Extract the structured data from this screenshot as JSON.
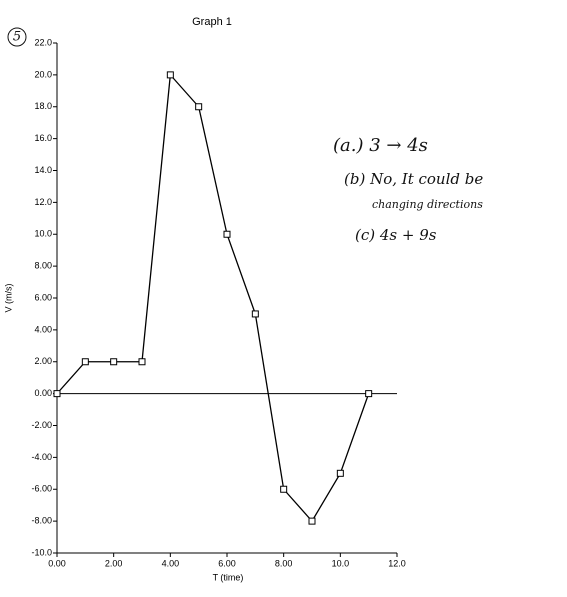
{
  "chart_data": {
    "type": "line",
    "title": "Graph 1",
    "xlabel": "T  (time)",
    "ylabel": "V  (m/s)",
    "x": [
      0,
      1,
      2,
      3,
      4,
      5,
      6,
      7,
      8,
      9,
      10,
      11
    ],
    "series": [
      {
        "color": "#000000",
        "values": [
          0,
          2,
          2,
          2,
          20,
          18,
          10,
          5,
          -6,
          -8,
          -5,
          0
        ]
      }
    ],
    "xlim": [
      0,
      12
    ],
    "xticks": [
      {
        "value": 0,
        "label": "0.00"
      },
      {
        "value": 2,
        "label": "2.00"
      },
      {
        "value": 4,
        "label": "4.00"
      },
      {
        "value": 6,
        "label": "6.00"
      },
      {
        "value": 8,
        "label": "8.00"
      },
      {
        "value": 10,
        "label": "10.0"
      },
      {
        "value": 12,
        "label": "12.0"
      }
    ],
    "ylim": [
      -10,
      22
    ],
    "yticks": [
      {
        "value": 22,
        "label": "22.0"
      },
      {
        "value": 20,
        "label": "20.0"
      },
      {
        "value": 18,
        "label": "18.0"
      },
      {
        "value": 16,
        "label": "16.0"
      },
      {
        "value": 14,
        "label": "14.0"
      },
      {
        "value": 12,
        "label": "12.0"
      },
      {
        "value": 10,
        "label": "10.0"
      },
      {
        "value": 8,
        "label": "8.00"
      },
      {
        "value": 6,
        "label": "6.00"
      },
      {
        "value": 4,
        "label": "4.00"
      },
      {
        "value": 2,
        "label": "2.00"
      },
      {
        "value": 0,
        "label": "0.00"
      },
      {
        "value": -2,
        "label": "-2.00"
      },
      {
        "value": -4,
        "label": "-4.00"
      },
      {
        "value": -6,
        "label": "-6.00"
      },
      {
        "value": -8,
        "label": "-8.00"
      },
      {
        "value": -10,
        "label": "-10.0"
      }
    ],
    "grid": false,
    "annotations": [
      "5",
      "(a.)  3 → 4s",
      "(b)  No, It could be",
      "changing directions",
      "(c)  4s + 9s"
    ]
  }
}
